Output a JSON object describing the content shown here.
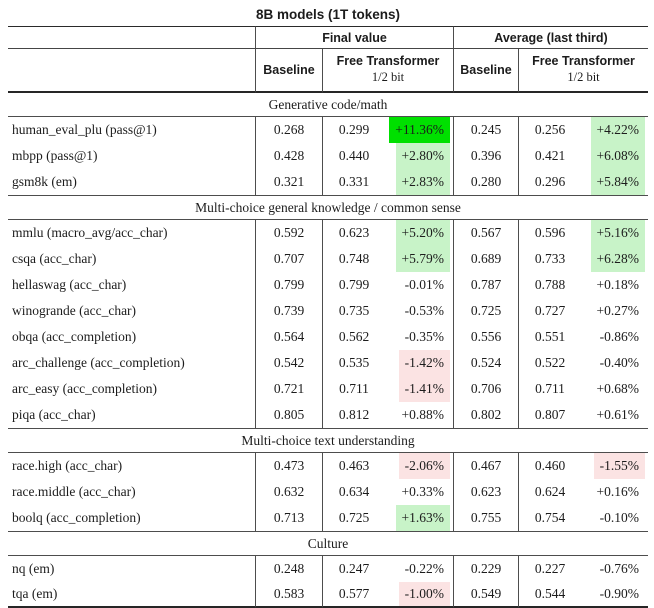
{
  "title": "8B models (1T tokens)",
  "colors": {
    "strong_green": "#00e000",
    "light_green": "#c8f3c8",
    "pink": "#fbe3e3"
  },
  "header": {
    "groups": [
      {
        "label": "Final value"
      },
      {
        "label": "Average (last third)"
      }
    ],
    "subcols": {
      "baseline": "Baseline",
      "free_transformer": "Free Transformer",
      "bits": "1/2 bit"
    }
  },
  "sections": [
    {
      "label": "Generative code/math",
      "rows": [
        {
          "name": "human_eval_plu (pass@1)",
          "final": {
            "baseline": "0.268",
            "ft": "0.299",
            "delta": "+11.36%",
            "hl": "strong_green"
          },
          "avg": {
            "baseline": "0.245",
            "ft": "0.256",
            "delta": "+4.22%",
            "hl": "light_green"
          }
        },
        {
          "name": "mbpp (pass@1)",
          "final": {
            "baseline": "0.428",
            "ft": "0.440",
            "delta": "+2.80%",
            "hl": "light_green"
          },
          "avg": {
            "baseline": "0.396",
            "ft": "0.421",
            "delta": "+6.08%",
            "hl": "light_green"
          }
        },
        {
          "name": "gsm8k (em)",
          "final": {
            "baseline": "0.321",
            "ft": "0.331",
            "delta": "+2.83%",
            "hl": "light_green"
          },
          "avg": {
            "baseline": "0.280",
            "ft": "0.296",
            "delta": "+5.84%",
            "hl": "light_green"
          }
        }
      ]
    },
    {
      "label": "Multi-choice general knowledge / common sense",
      "rows": [
        {
          "name": "mmlu (macro_avg/acc_char)",
          "final": {
            "baseline": "0.592",
            "ft": "0.623",
            "delta": "+5.20%",
            "hl": "light_green"
          },
          "avg": {
            "baseline": "0.567",
            "ft": "0.596",
            "delta": "+5.16%",
            "hl": "light_green"
          }
        },
        {
          "name": "csqa (acc_char)",
          "final": {
            "baseline": "0.707",
            "ft": "0.748",
            "delta": "+5.79%",
            "hl": "light_green"
          },
          "avg": {
            "baseline": "0.689",
            "ft": "0.733",
            "delta": "+6.28%",
            "hl": "light_green"
          }
        },
        {
          "name": "hellaswag (acc_char)",
          "final": {
            "baseline": "0.799",
            "ft": "0.799",
            "delta": "-0.01%",
            "hl": null
          },
          "avg": {
            "baseline": "0.787",
            "ft": "0.788",
            "delta": "+0.18%",
            "hl": null
          }
        },
        {
          "name": "winogrande (acc_char)",
          "final": {
            "baseline": "0.739",
            "ft": "0.735",
            "delta": "-0.53%",
            "hl": null
          },
          "avg": {
            "baseline": "0.725",
            "ft": "0.727",
            "delta": "+0.27%",
            "hl": null
          }
        },
        {
          "name": "obqa (acc_completion)",
          "final": {
            "baseline": "0.564",
            "ft": "0.562",
            "delta": "-0.35%",
            "hl": null
          },
          "avg": {
            "baseline": "0.556",
            "ft": "0.551",
            "delta": "-0.86%",
            "hl": null
          }
        },
        {
          "name": "arc_challenge (acc_completion)",
          "final": {
            "baseline": "0.542",
            "ft": "0.535",
            "delta": "-1.42%",
            "hl": "pink"
          },
          "avg": {
            "baseline": "0.524",
            "ft": "0.522",
            "delta": "-0.40%",
            "hl": null
          }
        },
        {
          "name": "arc_easy (acc_completion)",
          "final": {
            "baseline": "0.721",
            "ft": "0.711",
            "delta": "-1.41%",
            "hl": "pink"
          },
          "avg": {
            "baseline": "0.706",
            "ft": "0.711",
            "delta": "+0.68%",
            "hl": null
          }
        },
        {
          "name": "piqa (acc_char)",
          "final": {
            "baseline": "0.805",
            "ft": "0.812",
            "delta": "+0.88%",
            "hl": null
          },
          "avg": {
            "baseline": "0.802",
            "ft": "0.807",
            "delta": "+0.61%",
            "hl": null
          }
        }
      ]
    },
    {
      "label": "Multi-choice text understanding",
      "rows": [
        {
          "name": "race.high (acc_char)",
          "final": {
            "baseline": "0.473",
            "ft": "0.463",
            "delta": "-2.06%",
            "hl": "pink"
          },
          "avg": {
            "baseline": "0.467",
            "ft": "0.460",
            "delta": "-1.55%",
            "hl": "pink"
          }
        },
        {
          "name": "race.middle (acc_char)",
          "final": {
            "baseline": "0.632",
            "ft": "0.634",
            "delta": "+0.33%",
            "hl": null
          },
          "avg": {
            "baseline": "0.623",
            "ft": "0.624",
            "delta": "+0.16%",
            "hl": null
          }
        },
        {
          "name": "boolq (acc_completion)",
          "final": {
            "baseline": "0.713",
            "ft": "0.725",
            "delta": "+1.63%",
            "hl": "light_green"
          },
          "avg": {
            "baseline": "0.755",
            "ft": "0.754",
            "delta": "-0.10%",
            "hl": null
          }
        }
      ]
    },
    {
      "label": "Culture",
      "rows": [
        {
          "name": "nq (em)",
          "final": {
            "baseline": "0.248",
            "ft": "0.247",
            "delta": "-0.22%",
            "hl": null
          },
          "avg": {
            "baseline": "0.229",
            "ft": "0.227",
            "delta": "-0.76%",
            "hl": null
          }
        },
        {
          "name": "tqa (em)",
          "final": {
            "baseline": "0.583",
            "ft": "0.577",
            "delta": "-1.00%",
            "hl": "pink"
          },
          "avg": {
            "baseline": "0.549",
            "ft": "0.544",
            "delta": "-0.90%",
            "hl": null
          }
        }
      ]
    }
  ]
}
